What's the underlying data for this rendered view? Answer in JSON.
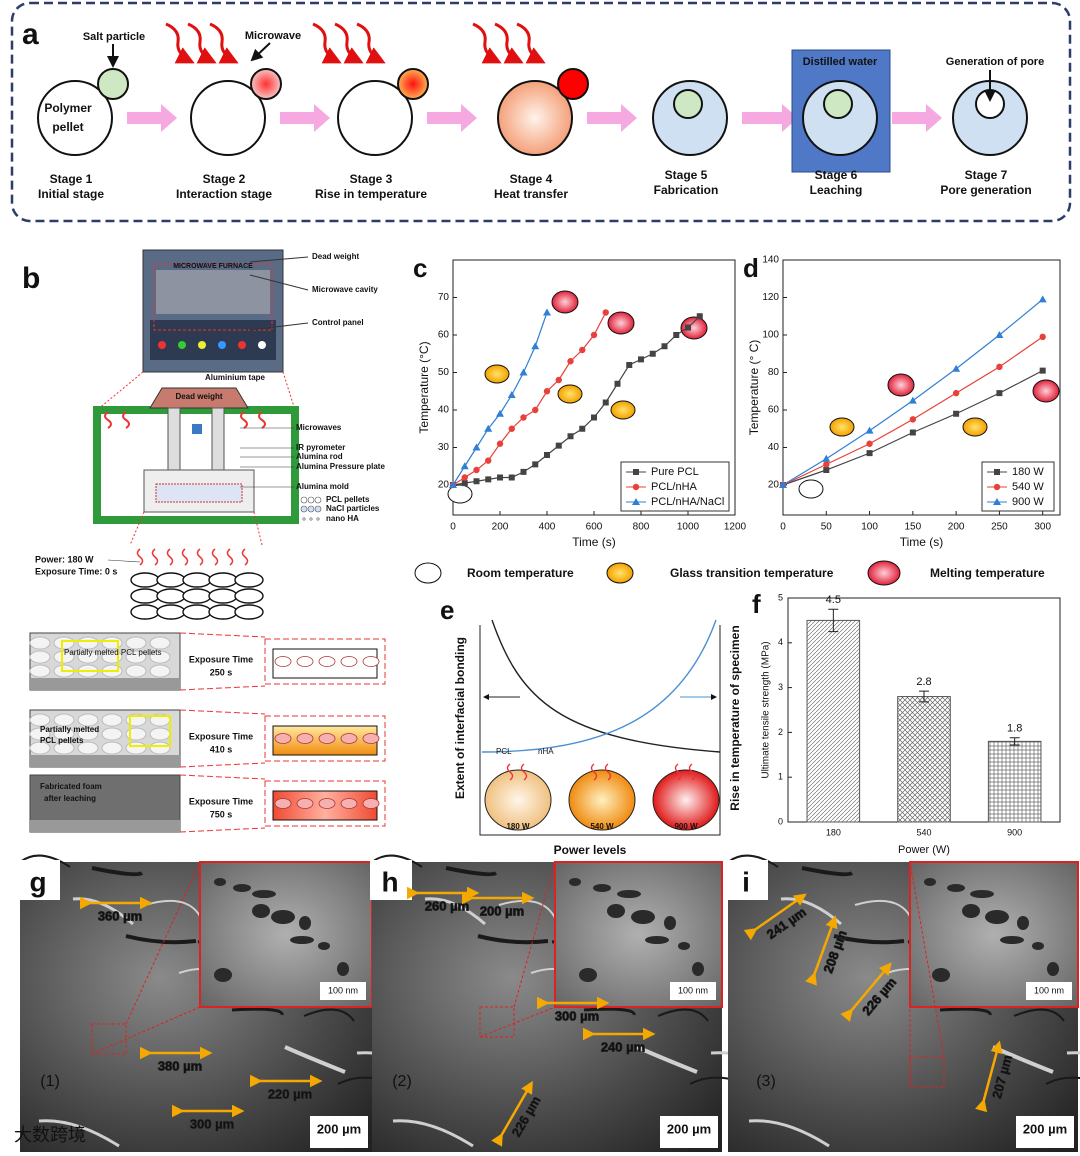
{
  "panel_a": {
    "letter": "a",
    "salt_particle": "Salt particle",
    "microwave": "Microwave",
    "polymer_1": "Polymer",
    "polymer_2": "pellet",
    "distilled_water": "Distilled water",
    "pore": "Generation of pore",
    "stages": [
      {
        "name": "Stage 1",
        "desc": "Initial stage"
      },
      {
        "name": "Stage 2",
        "desc": "Interaction stage"
      },
      {
        "name": "Stage 3",
        "desc": "Rise in temperature"
      },
      {
        "name": "Stage 4",
        "desc": "Heat transfer"
      },
      {
        "name": "Stage 5",
        "desc": "Fabrication"
      },
      {
        "name": "Stage 6",
        "desc": "Leaching"
      },
      {
        "name": "Stage 7",
        "desc": "Pore generation"
      }
    ]
  },
  "panel_b": {
    "letter": "b",
    "furnace": "MICROWAVE FURNACE",
    "dead_weight": "Dead weight",
    "cavity": "Microwave cavity",
    "control": "Control panel",
    "tape": "Aluminium tape",
    "box_weight": "Dead weight",
    "microwaves": "Microwaves",
    "pyrometer": "IR pyrometer",
    "rod": "Alumina rod",
    "plate": "Alumina Pressure plate",
    "mold": "Alumina mold",
    "pcl": "PCL pellets",
    "nacl": "NaCl particles",
    "nha": "nano HA",
    "power": "Power: 180 W",
    "time0": "Exposure Time: 0 s",
    "rows": [
      {
        "photo": "Partially melted PCL pellets",
        "photo2": "",
        "label": "Exposure Time",
        "time": "250 s"
      },
      {
        "photo": "Partially melted",
        "photo2": "PCL pellets",
        "label": "Exposure Time",
        "time": "410 s"
      },
      {
        "photo": "Fabricated foam",
        "photo2": "after leaching",
        "label": "Exposure Time",
        "time": "750 s"
      }
    ]
  },
  "legend_shapes": [
    "Room temperature",
    "Glass transition temperature",
    "Melting temperature"
  ],
  "panel_e": {
    "letter": "e",
    "left": "Extent of interfacial bonding",
    "right": "Rise in temperature of specimen",
    "x": "Power levels",
    "pcl": "PCL",
    "nha": "nHA",
    "powers": [
      "180 W",
      "540 W",
      "900 W"
    ]
  },
  "sem": [
    {
      "letter": "g",
      "marker": "(1)",
      "measures": [
        "360 µm",
        "380 µm",
        "220 µm",
        "300 µm"
      ],
      "inset_scale": "100 nm",
      "scale": "200 µm"
    },
    {
      "letter": "h",
      "marker": "(2)",
      "measures": [
        "260 µm",
        "200 µm",
        "300 µm",
        "240 µm",
        "226 µm"
      ],
      "inset_scale": "100 nm",
      "scale": "200 µm"
    },
    {
      "letter": "i",
      "marker": "(3)",
      "measures": [
        "241 µm",
        "208 µm",
        "226 µm",
        "207 µm"
      ],
      "inset_scale": "100 nm",
      "scale": "200 µm"
    }
  ],
  "watermark": "大数跨境",
  "chart_data": [
    {
      "type": "line",
      "panel": "c",
      "x_label": "Time (s)",
      "y_label": "Temperature (°C)",
      "xlim": [
        0,
        1200
      ],
      "xticks": [
        0,
        200,
        400,
        600,
        800,
        1000,
        1200
      ],
      "ylim": [
        12,
        80
      ],
      "yticks": [
        20,
        30,
        40,
        50,
        60,
        70
      ],
      "legend": "lower right",
      "series": [
        {
          "name": "Pure PCL",
          "color": "#444444",
          "marker": "square",
          "x": [
            0,
            50,
            100,
            150,
            200,
            250,
            300,
            350,
            400,
            450,
            500,
            550,
            600,
            650,
            700,
            750,
            800,
            850,
            900,
            950,
            1000,
            1050
          ],
          "values": [
            20,
            20.5,
            21,
            21.5,
            22,
            22,
            23.5,
            25.5,
            28,
            30.5,
            33,
            35,
            38,
            42,
            47,
            52,
            53.5,
            55,
            57,
            60,
            62,
            65
          ]
        },
        {
          "name": "PCL/nHA",
          "color": "#e8403a",
          "marker": "circle",
          "x": [
            0,
            50,
            100,
            150,
            200,
            250,
            300,
            350,
            400,
            450,
            500,
            550,
            600,
            650
          ],
          "values": [
            20,
            22,
            24,
            26.5,
            31,
            35,
            38,
            40,
            45,
            48,
            53,
            56,
            60,
            66
          ]
        },
        {
          "name": "PCL/nHA/NaCl",
          "color": "#2f7fd6",
          "marker": "triangle",
          "x": [
            0,
            50,
            100,
            150,
            200,
            250,
            300,
            350,
            400
          ],
          "values": [
            20,
            25,
            30,
            35,
            39,
            44,
            50,
            57,
            66
          ]
        }
      ]
    },
    {
      "type": "line",
      "panel": "d",
      "x_label": "Time (s)",
      "y_label": "Temperature (° C)",
      "xlim": [
        0,
        320
      ],
      "xticks": [
        0,
        50,
        100,
        150,
        200,
        250,
        300
      ],
      "ylim": [
        4,
        140
      ],
      "yticks": [
        20,
        40,
        60,
        80,
        100,
        120,
        140
      ],
      "legend": "lower right",
      "series": [
        {
          "name": "180 W",
          "color": "#444444",
          "marker": "square",
          "x": [
            0,
            50,
            100,
            150,
            200,
            250,
            300
          ],
          "values": [
            20,
            28,
            37,
            48,
            58,
            69,
            81
          ]
        },
        {
          "name": "540 W",
          "color": "#e8403a",
          "marker": "circle",
          "x": [
            0,
            50,
            100,
            150,
            200,
            250,
            300
          ],
          "values": [
            20,
            31,
            42,
            55,
            69,
            83,
            99
          ]
        },
        {
          "name": "900 W",
          "color": "#2f7fd6",
          "marker": "triangle",
          "x": [
            0,
            50,
            100,
            150,
            200,
            250,
            300
          ],
          "values": [
            20,
            34,
            49,
            65,
            82,
            100,
            119
          ]
        }
      ]
    },
    {
      "type": "bar",
      "panel": "f",
      "x_label": "Power (W)",
      "y_label": "Ultimate tensile strength (MPa)",
      "categories": [
        "180",
        "540",
        "900"
      ],
      "values": [
        4.5,
        2.8,
        1.8
      ],
      "errors": [
        0.25,
        0.12,
        0.08
      ],
      "ylim": [
        0,
        5
      ],
      "yticks": [
        0,
        1,
        2,
        3,
        4,
        5
      ],
      "color": "#555555"
    }
  ]
}
